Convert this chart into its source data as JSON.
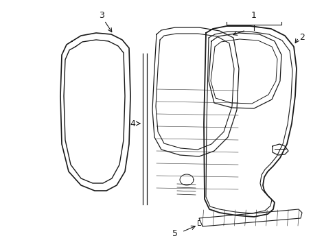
{
  "bg_color": "#ffffff",
  "line_color": "#1a1a1a",
  "figsize": [
    4.89,
    3.6
  ],
  "dpi": 100
}
